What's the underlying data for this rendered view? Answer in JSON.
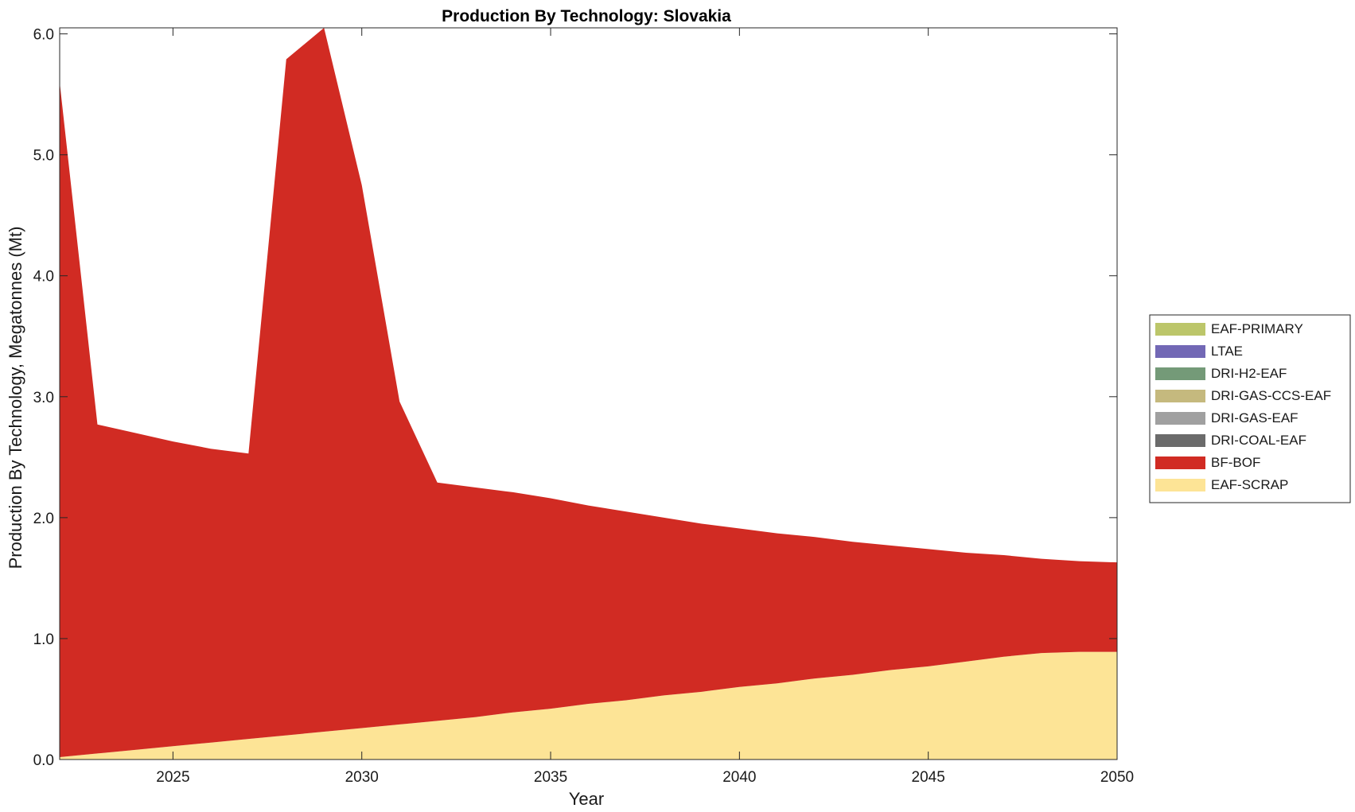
{
  "chart_data": {
    "type": "area",
    "stacked": true,
    "title": "Production By Technology: Slovakia",
    "xlabel": "Year",
    "ylabel": "Production By Technology, Megatonnes (Mt)",
    "xlim": [
      2022,
      2050
    ],
    "ylim": [
      0,
      6.05
    ],
    "xticks": [
      2025,
      2030,
      2035,
      2040,
      2045,
      2050
    ],
    "yticks": [
      0.0,
      1.0,
      2.0,
      3.0,
      4.0,
      5.0,
      6.0
    ],
    "ytick_labels": [
      "0.0",
      "1.0",
      "2.0",
      "3.0",
      "4.0",
      "5.0",
      "6.0"
    ],
    "grid": false,
    "legend_position": "right",
    "x": [
      2022,
      2023,
      2024,
      2025,
      2026,
      2027,
      2028,
      2029,
      2030,
      2031,
      2032,
      2033,
      2034,
      2035,
      2036,
      2037,
      2038,
      2039,
      2040,
      2041,
      2042,
      2043,
      2044,
      2045,
      2046,
      2047,
      2048,
      2049,
      2050
    ],
    "series": [
      {
        "name": "EAF-SCRAP",
        "color": "#FDE496",
        "values": [
          0.02,
          0.05,
          0.08,
          0.11,
          0.14,
          0.17,
          0.2,
          0.23,
          0.26,
          0.29,
          0.32,
          0.35,
          0.39,
          0.42,
          0.46,
          0.49,
          0.53,
          0.56,
          0.6,
          0.63,
          0.67,
          0.7,
          0.74,
          0.77,
          0.81,
          0.85,
          0.88,
          0.89,
          0.89
        ]
      },
      {
        "name": "BF-BOF",
        "color": "#D12B23",
        "values": [
          5.58,
          2.72,
          2.62,
          2.52,
          2.43,
          2.36,
          5.59,
          5.82,
          4.49,
          2.67,
          1.97,
          1.9,
          1.82,
          1.74,
          1.64,
          1.56,
          1.47,
          1.39,
          1.31,
          1.24,
          1.17,
          1.1,
          1.03,
          0.97,
          0.9,
          0.84,
          0.78,
          0.75,
          0.74
        ]
      },
      {
        "name": "DRI-COAL-EAF",
        "color": "#6B6B6B",
        "values": [
          0,
          0,
          0,
          0,
          0,
          0,
          0,
          0,
          0,
          0,
          0,
          0,
          0,
          0,
          0,
          0,
          0,
          0,
          0,
          0,
          0,
          0,
          0,
          0,
          0,
          0,
          0,
          0,
          0
        ]
      },
      {
        "name": "DRI-GAS-EAF",
        "color": "#A0A0A0",
        "values": [
          0,
          0,
          0,
          0,
          0,
          0,
          0,
          0,
          0,
          0,
          0,
          0,
          0,
          0,
          0,
          0,
          0,
          0,
          0,
          0,
          0,
          0,
          0,
          0,
          0,
          0,
          0,
          0,
          0
        ]
      },
      {
        "name": "DRI-GAS-CCS-EAF",
        "color": "#C5B97E",
        "values": [
          0,
          0,
          0,
          0,
          0,
          0,
          0,
          0,
          0,
          0,
          0,
          0,
          0,
          0,
          0,
          0,
          0,
          0,
          0,
          0,
          0,
          0,
          0,
          0,
          0,
          0,
          0,
          0,
          0
        ]
      },
      {
        "name": "DRI-H2-EAF",
        "color": "#749A78",
        "values": [
          0,
          0,
          0,
          0,
          0,
          0,
          0,
          0,
          0,
          0,
          0,
          0,
          0,
          0,
          0,
          0,
          0,
          0,
          0,
          0,
          0,
          0,
          0,
          0,
          0,
          0,
          0,
          0,
          0
        ]
      },
      {
        "name": "LTAE",
        "color": "#7268B5",
        "values": [
          0,
          0,
          0,
          0,
          0,
          0,
          0,
          0,
          0,
          0,
          0,
          0,
          0,
          0,
          0,
          0,
          0,
          0,
          0,
          0,
          0,
          0,
          0,
          0,
          0,
          0,
          0,
          0,
          0
        ]
      },
      {
        "name": "EAF-PRIMARY",
        "color": "#BCC66A",
        "values": [
          0,
          0,
          0,
          0,
          0,
          0,
          0,
          0,
          0,
          0,
          0,
          0,
          0,
          0,
          0,
          0,
          0,
          0,
          0,
          0,
          0,
          0,
          0,
          0,
          0,
          0,
          0,
          0,
          0
        ]
      }
    ],
    "legend_order": [
      "EAF-PRIMARY",
      "LTAE",
      "DRI-H2-EAF",
      "DRI-GAS-CCS-EAF",
      "DRI-GAS-EAF",
      "DRI-COAL-EAF",
      "BF-BOF",
      "EAF-SCRAP"
    ]
  }
}
